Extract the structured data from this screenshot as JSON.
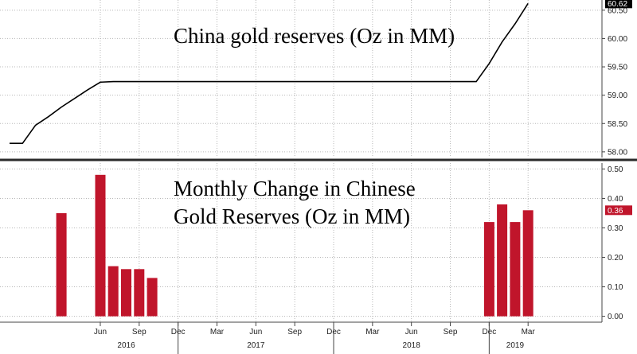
{
  "chart_data": [
    {
      "type": "line",
      "title": "China gold reserves (Oz in MM)",
      "ylim": [
        57.9,
        60.68
      ],
      "yticks": [
        "58.00",
        "58.50",
        "59.00",
        "59.50",
        "60.00",
        "60.50"
      ],
      "last_value_label": "60.62",
      "grid": true,
      "series_color": "#000000",
      "points": [
        {
          "x": "2015-11",
          "y": 58.15
        },
        {
          "x": "2015-12",
          "y": 58.15
        },
        {
          "x": "2016-01",
          "y": 58.47
        },
        {
          "x": "2016-02",
          "y": 58.62
        },
        {
          "x": "2016-03",
          "y": 58.79
        },
        {
          "x": "2016-04",
          "y": 58.94
        },
        {
          "x": "2016-05",
          "y": 59.09
        },
        {
          "x": "2016-06",
          "y": 59.23
        },
        {
          "x": "2016-07",
          "y": 59.24
        },
        {
          "x": "2016-08",
          "y": 59.24
        },
        {
          "x": "2018-11",
          "y": 59.24
        },
        {
          "x": "2018-12",
          "y": 59.56
        },
        {
          "x": "2019-01",
          "y": 59.94
        },
        {
          "x": "2019-02",
          "y": 60.26
        },
        {
          "x": "2019-03",
          "y": 60.62
        }
      ]
    },
    {
      "type": "bar",
      "title": "Monthly Change in Chinese Gold Reserves (Oz in MM)",
      "title_lines": [
        "Monthly Change in Chinese",
        "Gold Reserves (Oz in MM)"
      ],
      "ylim": [
        -0.02,
        0.52
      ],
      "yticks": [
        "0.00",
        "0.10",
        "0.20",
        "0.30",
        "0.40",
        "0.50"
      ],
      "last_value_label": "0.36",
      "grid": true,
      "bar_color": "#c0152b",
      "bars": [
        {
          "x": "2016-03",
          "value": 0.35
        },
        {
          "x": "2016-06",
          "value": 0.48
        },
        {
          "x": "2016-07",
          "value": 0.17
        },
        {
          "x": "2016-08",
          "value": 0.16
        },
        {
          "x": "2016-09",
          "value": 0.16
        },
        {
          "x": "2016-10",
          "value": 0.13
        },
        {
          "x": "2018-12",
          "value": 0.32
        },
        {
          "x": "2019-01",
          "value": 0.38
        },
        {
          "x": "2019-02",
          "value": 0.32
        },
        {
          "x": "2019-03",
          "value": 0.36
        }
      ]
    }
  ],
  "x_axis": {
    "month_ticks": [
      {
        "x": "2016-06",
        "label": "Jun"
      },
      {
        "x": "2016-09",
        "label": "Sep"
      },
      {
        "x": "2016-12",
        "label": "Dec"
      },
      {
        "x": "2017-03",
        "label": "Mar"
      },
      {
        "x": "2017-06",
        "label": "Jun"
      },
      {
        "x": "2017-09",
        "label": "Sep"
      },
      {
        "x": "2017-12",
        "label": "Dec"
      },
      {
        "x": "2018-03",
        "label": "Mar"
      },
      {
        "x": "2018-06",
        "label": "Jun"
      },
      {
        "x": "2018-09",
        "label": "Sep"
      },
      {
        "x": "2018-12",
        "label": "Dec"
      },
      {
        "x": "2019-03",
        "label": "Mar"
      }
    ],
    "year_labels": [
      {
        "x": "2016-08",
        "label": "2016"
      },
      {
        "x": "2017-06",
        "label": "2017"
      },
      {
        "x": "2018-06",
        "label": "2018"
      },
      {
        "x": "2019-02",
        "label": "2019"
      }
    ],
    "year_dividers": [
      "2016-12",
      "2017-12",
      "2018-12"
    ]
  }
}
